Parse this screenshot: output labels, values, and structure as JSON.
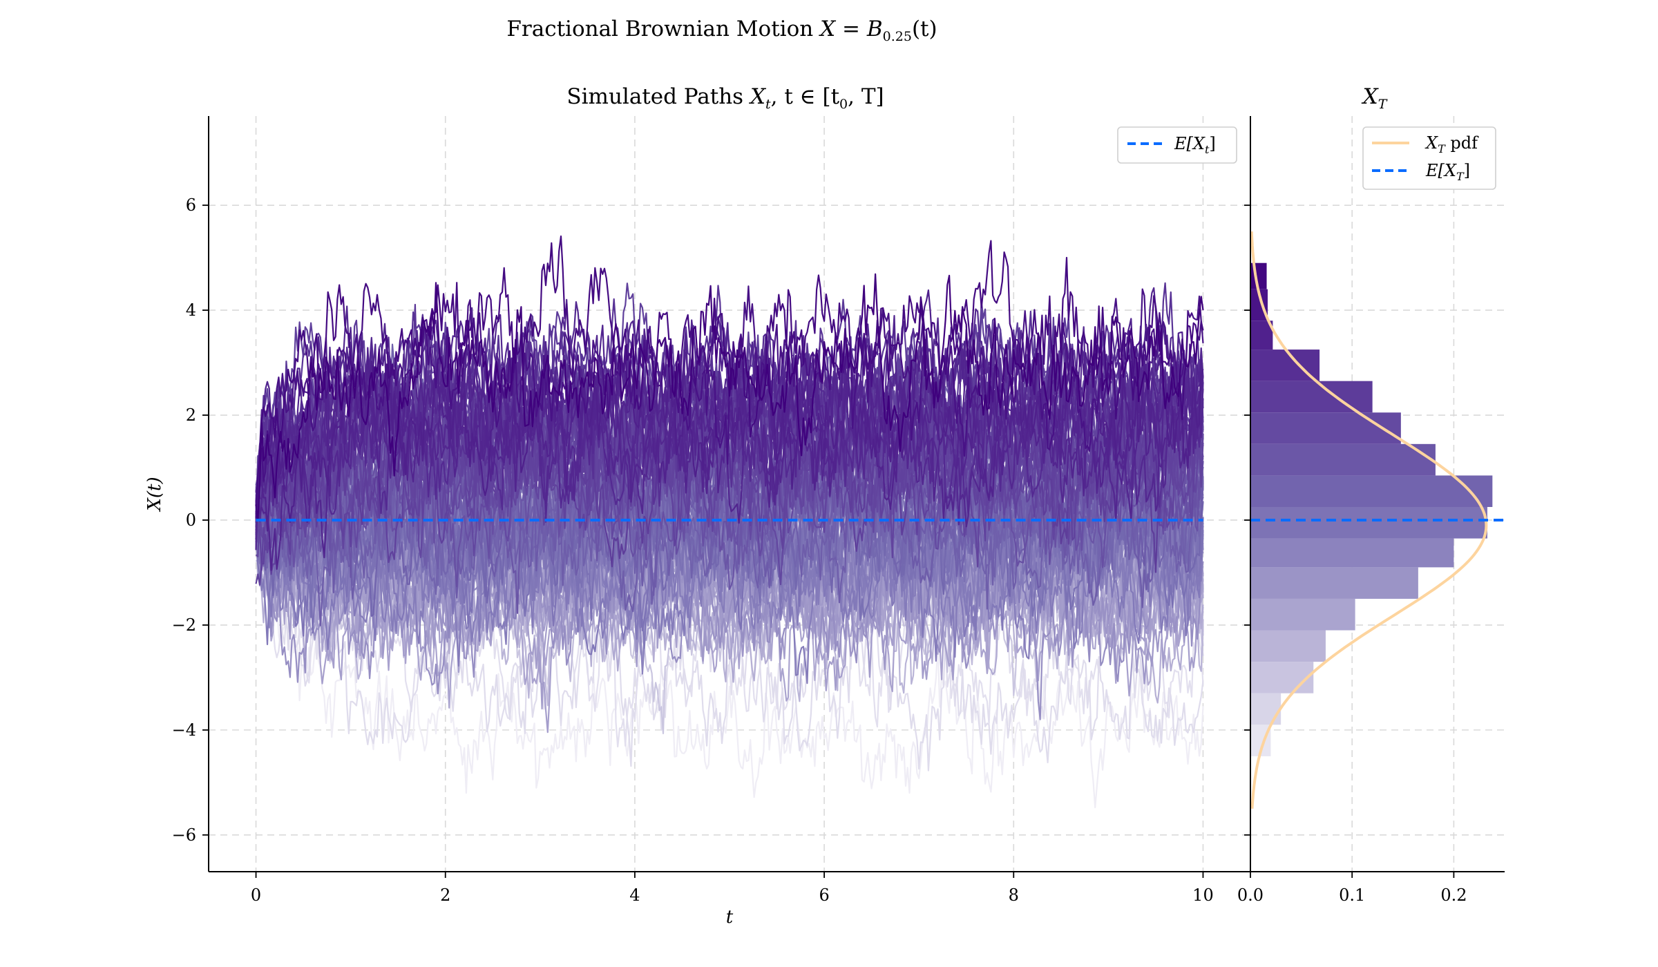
{
  "figure_title": "Fractional Brownian Motion X = B_{0.25}(t)",
  "title_parts": {
    "main": "Fractional Brownian Motion ",
    "math": "X = B",
    "sub": "0.25",
    "tail": "(t)"
  },
  "chart_data": [
    {
      "type": "line",
      "title": "Simulated Paths X_t, t ∈ [t_0, T]",
      "title_parts": {
        "main": "Simulated Paths ",
        "math": "X",
        "sub": "t",
        "tail": ", t ∈ [t",
        "sub2": "0",
        "tail2": ", T]"
      },
      "xlabel": "t",
      "ylabel": "X(t)",
      "xlim": [
        -0.5,
        10.5
      ],
      "ylim": [
        -6.7,
        7.7
      ],
      "xticks": [
        0,
        2,
        4,
        6,
        8,
        10
      ],
      "yticks": [
        -6,
        -4,
        -2,
        0,
        2,
        4,
        6
      ],
      "grid": true,
      "legend": {
        "placement": "top-right",
        "entries": [
          {
            "label": "E[X_t]",
            "math": "E[X",
            "sub": "t",
            "tail": "]",
            "color": "#0a6cff",
            "style": "dashed"
          }
        ]
      },
      "mean_line": {
        "x": [
          0,
          10
        ],
        "y": [
          0,
          0
        ],
        "color": "#0a6cff"
      },
      "n_paths": 100,
      "t_range": [
        0,
        10
      ],
      "hurst": 0.25,
      "color_scale": [
        "#efedf5",
        "#3f007d"
      ]
    },
    {
      "type": "bar",
      "orientation": "horizontal",
      "title": "X_T",
      "title_parts": {
        "math": "X",
        "sub": "T"
      },
      "xlim": [
        0.0,
        0.25
      ],
      "ylim": [
        -6.7,
        7.7
      ],
      "xticks": [
        0.0,
        0.1,
        0.2
      ],
      "xtick_labels": [
        "0.0",
        "0.1",
        "0.2"
      ],
      "grid": true,
      "legend": {
        "placement": "top-right",
        "entries": [
          {
            "label": "X_T pdf",
            "math": "X",
            "sub": "T",
            "tail": " pdf",
            "color": "#fdd49e",
            "style": "solid"
          },
          {
            "label": "E[X_T]",
            "math": "E[X",
            "sub": "T",
            "tail": "]",
            "color": "#0a6cff",
            "style": "dashed"
          }
        ]
      },
      "bin_edges": [
        -4.5,
        -3.9,
        -3.3,
        -2.7,
        -2.1,
        -1.5,
        -0.9,
        -0.35,
        0.25,
        0.85,
        1.45,
        2.05,
        2.65,
        3.25,
        3.8,
        4.4,
        4.9
      ],
      "densities": [
        0.02,
        0.03,
        0.062,
        0.074,
        0.103,
        0.165,
        0.2,
        0.233,
        0.238,
        0.182,
        0.148,
        0.12,
        0.068,
        0.022,
        0.017,
        0.016
      ],
      "pdf": {
        "mean": -0.1,
        "std": 1.72,
        "color": "#fdd49e"
      },
      "mean": 0,
      "mean_color": "#0a6cff"
    }
  ]
}
